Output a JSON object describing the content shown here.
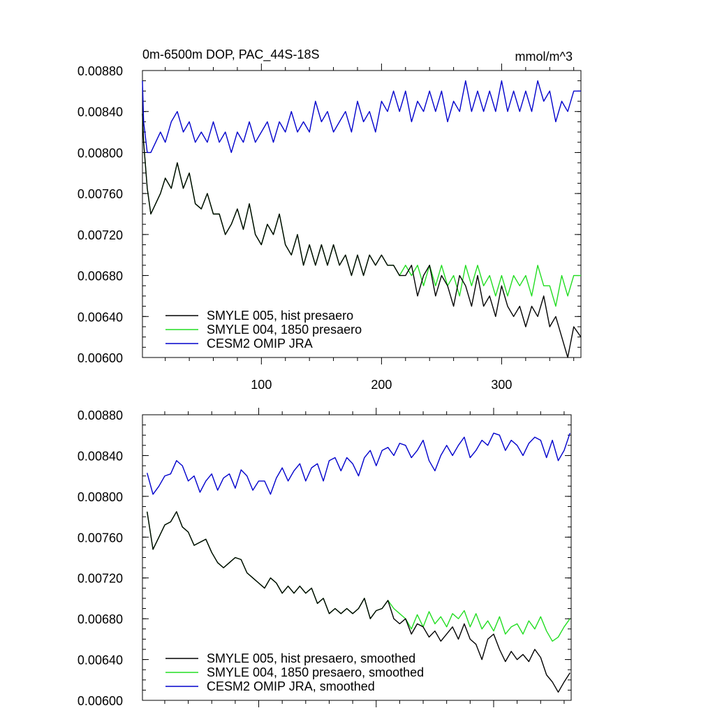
{
  "chart_data": [
    {
      "type": "line",
      "title": "0m-6500m DOP, PAC_44S-18S",
      "units": "mmol/m^3",
      "xlabel": "",
      "ylabel": "",
      "xlim": [
        1,
        366
      ],
      "ylim": [
        0.006,
        0.0088
      ],
      "xticks": [
        100,
        200,
        300
      ],
      "xtick_labels": [
        "100",
        "200",
        "300"
      ],
      "yticks": [
        0.006,
        0.0064,
        0.0068,
        0.0072,
        0.0076,
        0.008,
        0.0084,
        0.0088
      ],
      "ytick_labels": [
        "0.00600",
        "0.00640",
        "0.00680",
        "0.00720",
        "0.00760",
        "0.00800",
        "0.00840",
        "0.00880"
      ],
      "legend_position": "bottom-left",
      "series": [
        {
          "name": "SMYLE 005, hist presaero",
          "color": "#000000",
          "x": [
            1,
            2,
            5,
            8,
            12,
            16,
            20,
            25,
            30,
            35,
            40,
            45,
            50,
            55,
            60,
            65,
            70,
            75,
            80,
            85,
            90,
            95,
            100,
            105,
            110,
            115,
            120,
            125,
            130,
            135,
            140,
            145,
            150,
            155,
            160,
            165,
            170,
            175,
            180,
            185,
            190,
            195,
            200,
            205,
            210,
            215,
            220,
            225,
            230,
            235,
            240,
            245,
            250,
            255,
            260,
            265,
            270,
            275,
            280,
            285,
            290,
            295,
            300,
            305,
            310,
            315,
            320,
            325,
            330,
            335,
            340,
            345,
            350,
            355,
            360,
            366
          ],
          "values": [
            0.00838,
            0.0081,
            0.00765,
            0.0074,
            0.0075,
            0.0076,
            0.00775,
            0.00765,
            0.0079,
            0.00765,
            0.0078,
            0.0075,
            0.00745,
            0.0076,
            0.0074,
            0.0074,
            0.0072,
            0.0073,
            0.00745,
            0.00725,
            0.0075,
            0.0072,
            0.0071,
            0.0073,
            0.0072,
            0.0074,
            0.0071,
            0.007,
            0.0072,
            0.0069,
            0.0071,
            0.0069,
            0.0071,
            0.0069,
            0.0071,
            0.0069,
            0.007,
            0.0068,
            0.007,
            0.0068,
            0.007,
            0.0069,
            0.007,
            0.0069,
            0.0069,
            0.0068,
            0.0068,
            0.0069,
            0.0066,
            0.0068,
            0.0069,
            0.0066,
            0.0068,
            0.0067,
            0.0065,
            0.0068,
            0.0067,
            0.0065,
            0.0068,
            0.0065,
            0.0066,
            0.0064,
            0.0067,
            0.0065,
            0.0064,
            0.0065,
            0.0063,
            0.0065,
            0.0064,
            0.0066,
            0.0063,
            0.0064,
            0.0062,
            0.006,
            0.0063,
            0.0062
          ]
        },
        {
          "name": "SMYLE 004, 1850 presaero",
          "color": "#22dd22",
          "x": [
            1,
            2,
            5,
            8,
            12,
            16,
            20,
            25,
            30,
            35,
            40,
            45,
            50,
            55,
            60,
            65,
            70,
            75,
            80,
            85,
            90,
            95,
            100,
            105,
            110,
            115,
            120,
            125,
            130,
            135,
            140,
            145,
            150,
            155,
            160,
            165,
            170,
            175,
            180,
            185,
            190,
            195,
            200,
            205,
            210,
            215,
            220,
            225,
            230,
            235,
            240,
            245,
            250,
            255,
            260,
            265,
            270,
            275,
            280,
            285,
            290,
            295,
            300,
            305,
            310,
            315,
            320,
            325,
            330,
            335,
            340,
            345,
            350,
            355,
            360,
            366
          ],
          "values": [
            0.00838,
            0.0081,
            0.00765,
            0.0074,
            0.0075,
            0.0076,
            0.00775,
            0.00765,
            0.0079,
            0.00765,
            0.0078,
            0.0075,
            0.00745,
            0.0076,
            0.0074,
            0.0074,
            0.0072,
            0.0073,
            0.00745,
            0.00725,
            0.0075,
            0.0072,
            0.0071,
            0.0073,
            0.0072,
            0.0074,
            0.0071,
            0.007,
            0.0072,
            0.0069,
            0.0071,
            0.0069,
            0.0071,
            0.0069,
            0.0071,
            0.0069,
            0.007,
            0.0068,
            0.007,
            0.0068,
            0.007,
            0.0069,
            0.007,
            0.0069,
            0.0069,
            0.0068,
            0.0069,
            0.0068,
            0.0069,
            0.0067,
            0.0069,
            0.0067,
            0.0069,
            0.0067,
            0.0068,
            0.0066,
            0.0069,
            0.0067,
            0.0069,
            0.0067,
            0.0068,
            0.0066,
            0.0068,
            0.0066,
            0.0068,
            0.0067,
            0.0068,
            0.0066,
            0.0069,
            0.0067,
            0.0067,
            0.0065,
            0.0068,
            0.0066,
            0.0068,
            0.0068
          ]
        },
        {
          "name": "CESM2 OMIP JRA",
          "color": "#0000cc",
          "x": [
            1,
            2,
            5,
            8,
            12,
            16,
            20,
            25,
            30,
            35,
            40,
            45,
            50,
            55,
            60,
            65,
            70,
            75,
            80,
            85,
            90,
            95,
            100,
            105,
            110,
            115,
            120,
            125,
            130,
            135,
            140,
            145,
            150,
            155,
            160,
            165,
            170,
            175,
            180,
            185,
            190,
            195,
            200,
            205,
            210,
            215,
            220,
            225,
            230,
            235,
            240,
            245,
            250,
            255,
            260,
            265,
            270,
            275,
            280,
            285,
            290,
            295,
            300,
            305,
            310,
            315,
            320,
            325,
            330,
            335,
            340,
            345,
            350,
            355,
            360,
            366
          ],
          "values": [
            0.0087,
            0.0083,
            0.008,
            0.008,
            0.0081,
            0.0082,
            0.0081,
            0.0083,
            0.0084,
            0.0082,
            0.0083,
            0.0081,
            0.0082,
            0.0081,
            0.0083,
            0.0081,
            0.0082,
            0.008,
            0.0082,
            0.0081,
            0.0083,
            0.0081,
            0.0082,
            0.0083,
            0.0081,
            0.0083,
            0.0082,
            0.0084,
            0.0082,
            0.0083,
            0.0082,
            0.0085,
            0.0083,
            0.0084,
            0.0082,
            0.0083,
            0.0084,
            0.0082,
            0.0085,
            0.0083,
            0.0084,
            0.0082,
            0.0085,
            0.0084,
            0.0086,
            0.0084,
            0.0086,
            0.0083,
            0.0085,
            0.0084,
            0.0086,
            0.0084,
            0.0086,
            0.0083,
            0.0085,
            0.0084,
            0.0087,
            0.0084,
            0.0086,
            0.0084,
            0.0086,
            0.0084,
            0.0087,
            0.0084,
            0.0086,
            0.0084,
            0.0086,
            0.0084,
            0.0087,
            0.0085,
            0.0086,
            0.0083,
            0.0085,
            0.0084,
            0.0086,
            0.0086
          ]
        }
      ]
    },
    {
      "type": "line",
      "title": "",
      "xlabel": "",
      "ylabel": "",
      "xlim": [
        1,
        366
      ],
      "ylim": [
        0.006,
        0.0088
      ],
      "xticks": [
        100,
        200,
        300
      ],
      "xtick_labels": [],
      "yticks": [
        0.006,
        0.0064,
        0.0068,
        0.0072,
        0.0076,
        0.008,
        0.0084,
        0.0088
      ],
      "ytick_labels": [
        "0.00600",
        "0.00640",
        "0.00680",
        "0.00720",
        "0.00760",
        "0.00800",
        "0.00840",
        "0.00880"
      ],
      "legend_position": "bottom-left",
      "series": [
        {
          "name": "SMYLE 005, hist presaero, smoothed",
          "color": "#000000",
          "x": [
            5,
            10,
            15,
            20,
            25,
            30,
            35,
            40,
            45,
            50,
            55,
            60,
            65,
            70,
            75,
            80,
            85,
            90,
            95,
            100,
            105,
            110,
            115,
            120,
            125,
            130,
            135,
            140,
            145,
            150,
            155,
            160,
            165,
            170,
            175,
            180,
            185,
            190,
            195,
            200,
            205,
            210,
            215,
            220,
            225,
            230,
            235,
            240,
            245,
            250,
            255,
            260,
            265,
            270,
            275,
            280,
            285,
            290,
            295,
            300,
            305,
            310,
            315,
            320,
            325,
            330,
            335,
            340,
            345,
            350,
            355,
            360,
            365
          ],
          "values": [
            0.00785,
            0.00748,
            0.0076,
            0.00772,
            0.00775,
            0.00785,
            0.0077,
            0.00765,
            0.00752,
            0.00755,
            0.00758,
            0.00745,
            0.00735,
            0.0073,
            0.00735,
            0.0074,
            0.00738,
            0.00725,
            0.0072,
            0.00715,
            0.0071,
            0.0072,
            0.00715,
            0.00705,
            0.00712,
            0.00705,
            0.00712,
            0.00705,
            0.0071,
            0.00695,
            0.007,
            0.00685,
            0.0069,
            0.00685,
            0.0069,
            0.00685,
            0.0069,
            0.007,
            0.0068,
            0.00688,
            0.0069,
            0.00698,
            0.0068,
            0.00675,
            0.0068,
            0.00665,
            0.00675,
            0.00672,
            0.00662,
            0.00668,
            0.00658,
            0.00665,
            0.00672,
            0.0066,
            0.00675,
            0.0066,
            0.00655,
            0.0064,
            0.0066,
            0.00665,
            0.0065,
            0.00638,
            0.00648,
            0.0064,
            0.00645,
            0.00638,
            0.0065,
            0.00642,
            0.00625,
            0.00618,
            0.00608,
            0.00618,
            0.00627
          ]
        },
        {
          "name": "SMYLE 004, 1850 presaero, smoothed",
          "color": "#22dd22",
          "x": [
            5,
            10,
            15,
            20,
            25,
            30,
            35,
            40,
            45,
            50,
            55,
            60,
            65,
            70,
            75,
            80,
            85,
            90,
            95,
            100,
            105,
            110,
            115,
            120,
            125,
            130,
            135,
            140,
            145,
            150,
            155,
            160,
            165,
            170,
            175,
            180,
            185,
            190,
            195,
            200,
            205,
            210,
            215,
            220,
            225,
            230,
            235,
            240,
            245,
            250,
            255,
            260,
            265,
            270,
            275,
            280,
            285,
            290,
            295,
            300,
            305,
            310,
            315,
            320,
            325,
            330,
            335,
            340,
            345,
            350,
            355,
            360,
            365
          ],
          "values": [
            0.00785,
            0.00748,
            0.0076,
            0.00772,
            0.00775,
            0.00785,
            0.0077,
            0.00765,
            0.00752,
            0.00755,
            0.00758,
            0.00745,
            0.00735,
            0.0073,
            0.00735,
            0.0074,
            0.00738,
            0.00725,
            0.0072,
            0.00715,
            0.0071,
            0.0072,
            0.00715,
            0.00705,
            0.00712,
            0.00705,
            0.00712,
            0.00705,
            0.0071,
            0.00695,
            0.007,
            0.00685,
            0.0069,
            0.00685,
            0.0069,
            0.00685,
            0.0069,
            0.007,
            0.0068,
            0.00688,
            0.0069,
            0.00698,
            0.0069,
            0.00685,
            0.0068,
            0.0067,
            0.00684,
            0.00672,
            0.00687,
            0.00675,
            0.00682,
            0.00672,
            0.00685,
            0.0068,
            0.00688,
            0.00672,
            0.00685,
            0.0067,
            0.00678,
            0.00668,
            0.00682,
            0.00665,
            0.00672,
            0.00675,
            0.00665,
            0.00678,
            0.0067,
            0.00682,
            0.00668,
            0.00658,
            0.00662,
            0.00672,
            0.0068
          ]
        },
        {
          "name": "CESM2 OMIP JRA, smoothed",
          "color": "#0000cc",
          "x": [
            5,
            10,
            15,
            20,
            25,
            30,
            35,
            40,
            45,
            50,
            55,
            60,
            65,
            70,
            75,
            80,
            85,
            90,
            95,
            100,
            105,
            110,
            115,
            120,
            125,
            130,
            135,
            140,
            145,
            150,
            155,
            160,
            165,
            170,
            175,
            180,
            185,
            190,
            195,
            200,
            205,
            210,
            215,
            220,
            225,
            230,
            235,
            240,
            245,
            250,
            255,
            260,
            265,
            270,
            275,
            280,
            285,
            290,
            295,
            300,
            305,
            310,
            315,
            320,
            325,
            330,
            335,
            340,
            345,
            350,
            355,
            360,
            365
          ],
          "values": [
            0.00823,
            0.00802,
            0.0081,
            0.0082,
            0.00822,
            0.00835,
            0.0083,
            0.00815,
            0.0082,
            0.00804,
            0.00815,
            0.00822,
            0.00806,
            0.00818,
            0.00822,
            0.00808,
            0.00826,
            0.0082,
            0.00806,
            0.00815,
            0.00815,
            0.00802,
            0.00818,
            0.00828,
            0.00815,
            0.00825,
            0.00832,
            0.00815,
            0.00828,
            0.00832,
            0.00815,
            0.00835,
            0.00838,
            0.00825,
            0.00838,
            0.00832,
            0.0082,
            0.00838,
            0.00845,
            0.0083,
            0.00845,
            0.00848,
            0.0084,
            0.00852,
            0.0085,
            0.00838,
            0.00845,
            0.00855,
            0.00835,
            0.00825,
            0.0084,
            0.0085,
            0.0084,
            0.0085,
            0.00858,
            0.00838,
            0.00845,
            0.00855,
            0.0085,
            0.00862,
            0.0086,
            0.00845,
            0.00855,
            0.0085,
            0.0084,
            0.00852,
            0.00858,
            0.00855,
            0.00838,
            0.00855,
            0.00835,
            0.00845,
            0.00862
          ]
        }
      ]
    }
  ]
}
